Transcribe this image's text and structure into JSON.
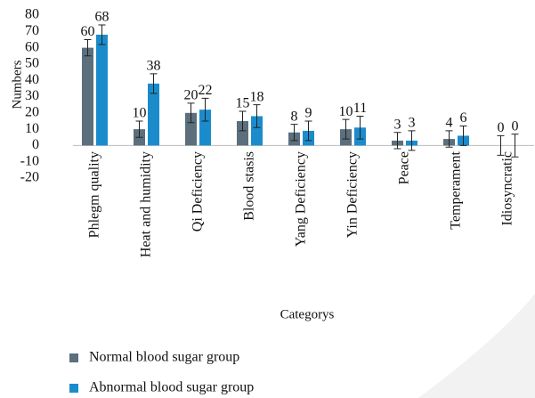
{
  "chart_data": {
    "type": "bar",
    "y_label": "Numbers",
    "x_label": "Categorys",
    "categories": [
      "Phlegm quality",
      "Heat and humidity",
      "Qi Deficiency",
      "Blood stasis",
      "Yang Deficiency",
      "Yin Deficiency",
      "Peace",
      "Temperament",
      "Idiosyncratic"
    ],
    "series": [
      {
        "name": "Normal blood sugar group",
        "color": "#5b6f7c",
        "values": [
          60,
          10,
          20,
          15,
          8,
          10,
          3,
          4,
          0
        ],
        "errors": [
          5,
          5,
          6,
          6,
          5,
          6,
          5,
          5,
          6
        ]
      },
      {
        "name": "Abnormal blood sugar group",
        "color": "#1a8ccc",
        "values": [
          68,
          38,
          22,
          18,
          9,
          11,
          3,
          6,
          0
        ],
        "errors": [
          6,
          6,
          7,
          7,
          6,
          7,
          6,
          6,
          7
        ]
      }
    ],
    "ylim": [
      -20,
      80
    ],
    "yticks": [
      -20,
      -10,
      0,
      10,
      20,
      30,
      40,
      50,
      60,
      70,
      80
    ]
  }
}
